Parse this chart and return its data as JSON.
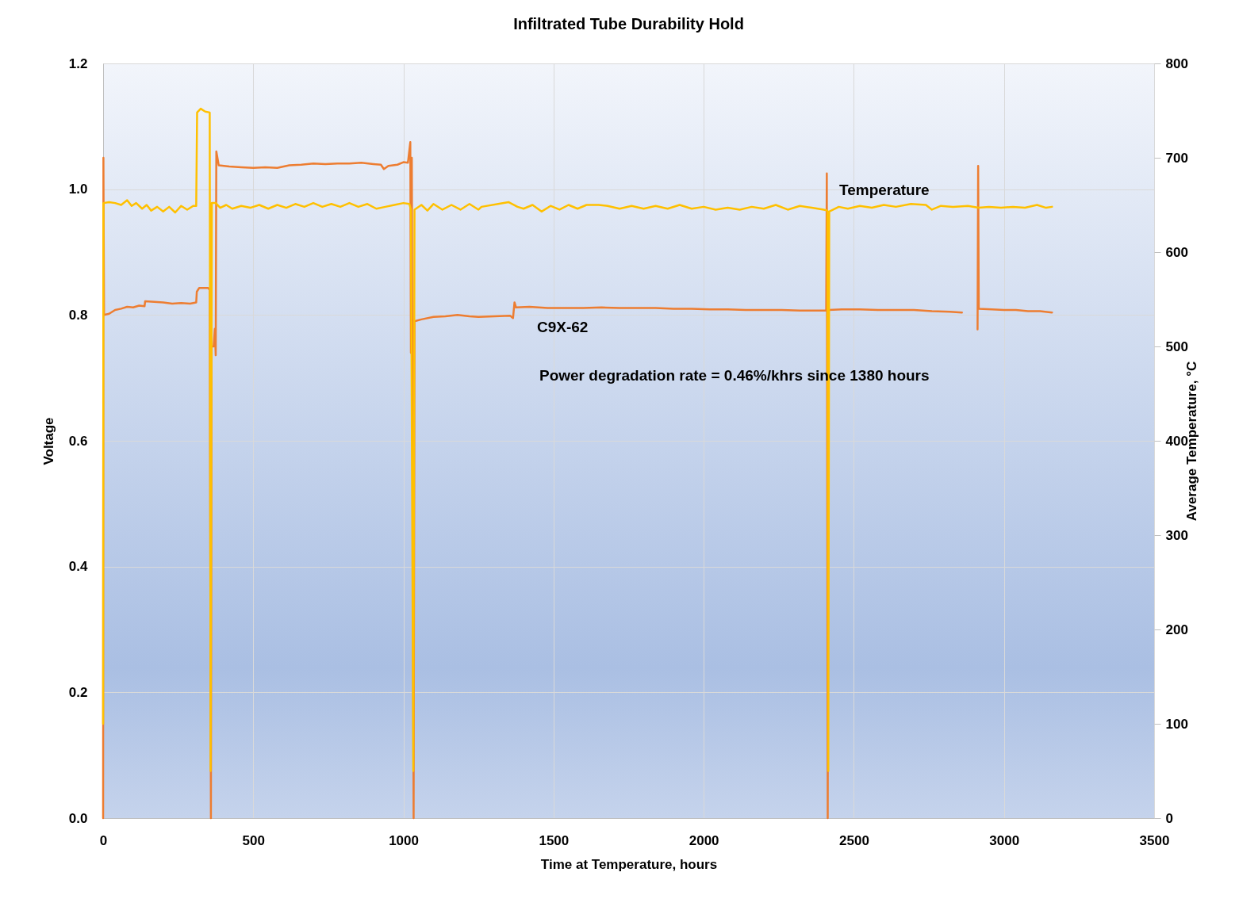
{
  "chart_data": {
    "type": "line",
    "title": "Infiltrated Tube Durability Hold",
    "xlabel": "Time at Temperature, hours",
    "ylabel": "Voltage",
    "y2label": "Average Temperature, °C",
    "xlim": [
      0,
      3500
    ],
    "xticks": [
      0,
      500,
      1000,
      1500,
      2000,
      2500,
      3000,
      3500
    ],
    "ylim": [
      0,
      1.2
    ],
    "yticks": [
      {
        "value": 0,
        "label": "0.0"
      },
      0.2,
      0.4,
      0.6,
      0.8,
      {
        "value": 1,
        "label": "1.0"
      },
      1.2
    ],
    "y2lim": [
      0,
      800
    ],
    "y2ticks": [
      0,
      100,
      200,
      300,
      400,
      500,
      600,
      700,
      800
    ],
    "grid": true,
    "legend": false,
    "annotations": [
      "Power degradation rate = 0.46%/khrs since 1380 hours"
    ],
    "series": [
      {
        "name": "C9X-62",
        "color": "#ed7d31",
        "x": [
          0,
          1,
          3,
          20,
          40,
          60,
          80,
          100,
          120,
          138,
          140,
          170,
          200,
          230,
          260,
          290,
          310,
          312,
          320,
          350,
          355,
          359,
          361,
          368,
          372,
          375,
          377,
          385,
          420,
          460,
          500,
          540,
          580,
          620,
          660,
          700,
          740,
          780,
          820,
          860,
          900,
          925,
          935,
          950,
          980,
          1000,
          1015,
          1023,
          1025,
          1028,
          1034,
          1037,
          1060,
          1100,
          1140,
          1180,
          1220,
          1250,
          1355,
          1365,
          1370,
          1375,
          1420,
          1480,
          1540,
          1600,
          1660,
          1720,
          1780,
          1840,
          1900,
          1960,
          2020,
          2080,
          2140,
          2200,
          2260,
          2320,
          2380,
          2408,
          2410,
          2413,
          2416,
          2460,
          2520,
          2580,
          2640,
          2700,
          2760,
          2820,
          2860,
          2880,
          2912,
          2914,
          2916,
          2960,
          3000,
          3040,
          3080,
          3120,
          3160
        ],
        "values": [
          0,
          1.05,
          0.8,
          0.802,
          0.808,
          0.81,
          0.813,
          0.812,
          0.815,
          0.814,
          0.822,
          0.821,
          0.82,
          0.818,
          0.819,
          0.818,
          0.82,
          0.837,
          0.843,
          0.843,
          0.84,
          0,
          0.75,
          0.75,
          0.778,
          0.736,
          1.06,
          1.038,
          1.036,
          1.035,
          1.034,
          1.035,
          1.034,
          1.038,
          1.039,
          1.041,
          1.04,
          1.041,
          1.041,
          1.042,
          1.04,
          1.039,
          1.032,
          1.037,
          1.039,
          1.043,
          1.042,
          1.075,
          0.74,
          1.05,
          0,
          0.79,
          0.793,
          0.797,
          0.798,
          0.8,
          0.798,
          0.797,
          0.799,
          0.795,
          0.82,
          0.812,
          0.813,
          0.811,
          0.811,
          0.811,
          0.812,
          0.811,
          0.811,
          0.811,
          0.81,
          0.81,
          0.809,
          0.809,
          0.808,
          0.808,
          0.808,
          0.807,
          0.807,
          0.807,
          1.025,
          0,
          0.808,
          0.809,
          0.809,
          0.808,
          0.808,
          0.808,
          0.806,
          0.805,
          0.804,
          null,
          0.777,
          1.037,
          0.81,
          0.809,
          0.808,
          0.808,
          0.806,
          0.806,
          0.804
        ]
      },
      {
        "name": "Temperature",
        "color": "#ffc000",
        "axis": "y2",
        "x": [
          0,
          1,
          20,
          40,
          60,
          80,
          95,
          110,
          130,
          145,
          160,
          180,
          200,
          220,
          240,
          260,
          280,
          300,
          310,
          313,
          325,
          340,
          355,
          358,
          362,
          375,
          390,
          410,
          430,
          460,
          490,
          520,
          550,
          580,
          610,
          640,
          670,
          700,
          730,
          760,
          790,
          820,
          850,
          880,
          910,
          940,
          970,
          1000,
          1020,
          1025,
          1033,
          1037,
          1060,
          1080,
          1100,
          1130,
          1160,
          1190,
          1220,
          1250,
          1260,
          1350,
          1380,
          1400,
          1430,
          1460,
          1490,
          1520,
          1550,
          1580,
          1610,
          1650,
          1680,
          1720,
          1760,
          1800,
          1840,
          1880,
          1920,
          1960,
          2000,
          2040,
          2080,
          2120,
          2160,
          2200,
          2240,
          2280,
          2320,
          2360,
          2400,
          2412,
          2415,
          2418,
          2450,
          2480,
          2520,
          2560,
          2600,
          2640,
          2690,
          2740,
          2760,
          2790,
          2830,
          2880,
          2915,
          2950,
          2990,
          3030,
          3070,
          3110,
          3140,
          3160
        ],
        "values": [
          100,
          652,
          653,
          652,
          650,
          655,
          649,
          652,
          646,
          650,
          644,
          648,
          643,
          648,
          642,
          649,
          645,
          649,
          649,
          748,
          752,
          749,
          748,
          50,
          652,
          652,
          647,
          650,
          646,
          649,
          647,
          650,
          646,
          650,
          647,
          651,
          648,
          652,
          648,
          651,
          648,
          652,
          648,
          651,
          646,
          648,
          650,
          652,
          651,
          645,
          50,
          645,
          650,
          644,
          651,
          645,
          650,
          645,
          651,
          645,
          648,
          653,
          648,
          646,
          650,
          643,
          649,
          645,
          650,
          646,
          650,
          650,
          649,
          646,
          649,
          646,
          649,
          646,
          650,
          646,
          648,
          645,
          647,
          645,
          648,
          646,
          650,
          645,
          649,
          647,
          645,
          644,
          50,
          643,
          648,
          646,
          649,
          647,
          650,
          648,
          651,
          650,
          645,
          649,
          648,
          649,
          647,
          648,
          647,
          648,
          647,
          650,
          647,
          648
        ]
      }
    ]
  }
}
